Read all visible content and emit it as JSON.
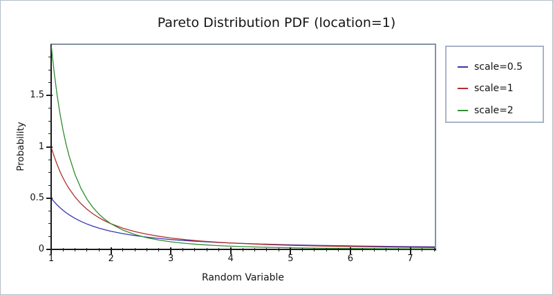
{
  "chart_data": {
    "type": "line",
    "title": "Pareto Distribution PDF (location=1)",
    "xlabel": "Random Variable",
    "ylabel": "Probability",
    "xlim": [
      1,
      7.41
    ],
    "ylim": [
      0,
      2
    ],
    "x_major_ticks": [
      1,
      2,
      3,
      4,
      5,
      6,
      7
    ],
    "x_tick_labels": [
      "1",
      "2",
      "3",
      "4",
      "5",
      "6",
      "7"
    ],
    "x_minor_step": 0.2,
    "y_major_ticks": [
      0,
      0.5,
      1,
      1.5
    ],
    "y_tick_labels": [
      "0",
      "0.5",
      "1",
      "1.5"
    ],
    "y_minor_step": 0.125,
    "grid": false,
    "legend_position": "outside-right",
    "x": [
      1,
      1.02,
      1.05,
      1.1,
      1.15,
      1.2,
      1.25,
      1.3,
      1.4,
      1.5,
      1.6,
      1.7,
      1.8,
      1.9,
      2,
      2.2,
      2.4,
      2.6,
      2.8,
      3,
      3.25,
      3.5,
      3.75,
      4,
      4.5,
      5,
      5.5,
      6,
      6.5,
      7,
      7.41
    ],
    "series": [
      {
        "name": "scale=0.5",
        "color": "#3434b2",
        "values": [
          0.5,
          0.4853,
          0.4647,
          0.4334,
          0.4054,
          0.3804,
          0.3578,
          0.3373,
          0.3018,
          0.2722,
          0.247,
          0.2256,
          0.207,
          0.1909,
          0.1768,
          0.1532,
          0.1345,
          0.1193,
          0.1067,
          0.0962,
          0.0853,
          0.0764,
          0.0689,
          0.0625,
          0.0524,
          0.0447,
          0.0388,
          0.034,
          0.0302,
          0.027,
          0.0248
        ]
      },
      {
        "name": "scale=1",
        "color": "#b22c2c",
        "values": [
          1,
          0.9612,
          0.907,
          0.8264,
          0.7561,
          0.6944,
          0.64,
          0.5917,
          0.5102,
          0.4444,
          0.3906,
          0.346,
          0.3086,
          0.277,
          0.25,
          0.2066,
          0.1736,
          0.1479,
          0.1276,
          0.1111,
          0.0947,
          0.0816,
          0.0711,
          0.0625,
          0.0494,
          0.04,
          0.0331,
          0.0278,
          0.0237,
          0.0204,
          0.0182
        ]
      },
      {
        "name": "scale=2",
        "color": "#2e8b2e",
        "values": [
          2,
          1.8847,
          1.7277,
          1.5026,
          1.315,
          1.1574,
          1.024,
          0.9103,
          0.7289,
          0.5926,
          0.4883,
          0.4071,
          0.3429,
          0.2916,
          0.25,
          0.1878,
          0.1447,
          0.1138,
          0.0911,
          0.0741,
          0.0583,
          0.0466,
          0.0379,
          0.0313,
          0.0219,
          0.016,
          0.012,
          0.0093,
          0.0073,
          0.0058,
          0.0049
        ]
      }
    ]
  },
  "colors": {
    "axis": "#1a1a1a",
    "plot_border": "#8292a6",
    "legend_border": "#a7b3c6",
    "frame_border": "#b2bcc8",
    "background": "#ffffff",
    "text": "#141414"
  }
}
